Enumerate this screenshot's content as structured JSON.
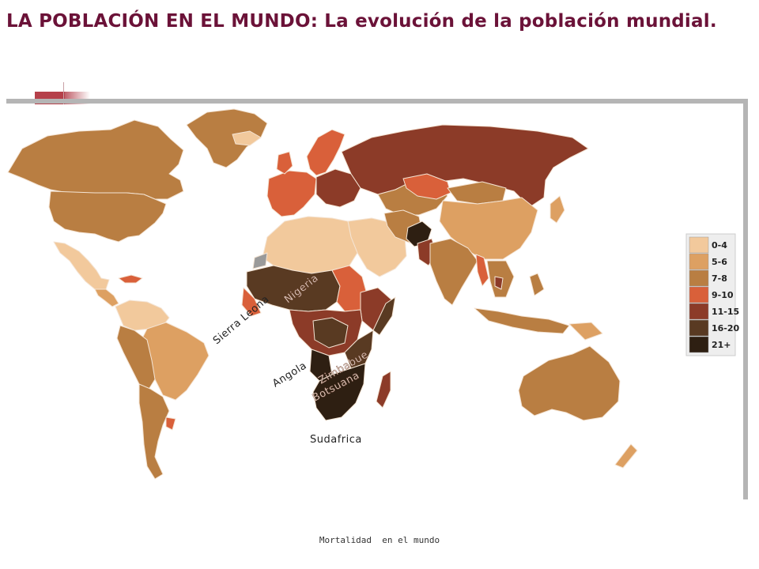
{
  "title": "LA POBLACIÓN EN EL MUNDO: La evolución de la población mundial.",
  "caption": "Mortalidad  en el mundo",
  "legend": [
    {
      "label": "0-4",
      "color": "#f2c99c"
    },
    {
      "label": "5-6",
      "color": "#dda062"
    },
    {
      "label": "7-8",
      "color": "#b97e42"
    },
    {
      "label": "9-10",
      "color": "#d9603a"
    },
    {
      "label": "11-15",
      "color": "#8c3b28"
    },
    {
      "label": "16-20",
      "color": "#593a22"
    },
    {
      "label": "21+",
      "color": "#2e1f12"
    }
  ],
  "country_labels": {
    "nigeria": "Nigeria",
    "sierra_leona": "Sierra Leona",
    "angola": "Angola",
    "zimbabue": "Zimbabue",
    "botsuana": "Botsuana",
    "sudafrica": "Sudafrica"
  },
  "colors": {
    "ocean": "#ffffff",
    "border": "#f4e4d4",
    "frame": "#b5b5b5",
    "title": "#6b1238"
  }
}
